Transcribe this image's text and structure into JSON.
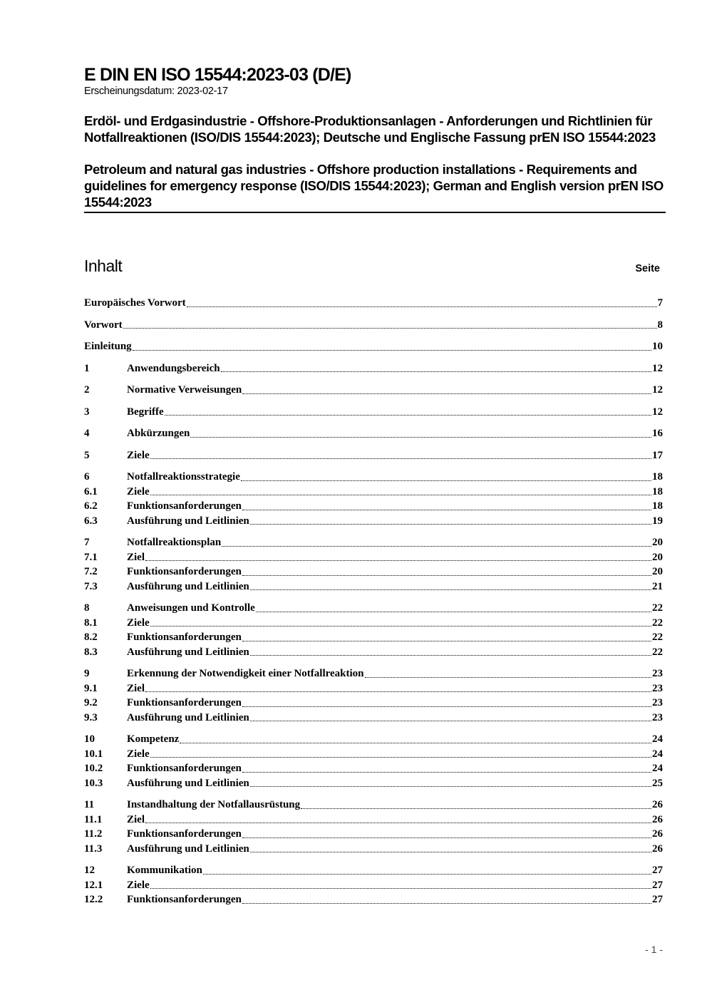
{
  "header": {
    "title": "E DIN EN ISO 15544:2023-03 (D/E)",
    "date": "Erscheinungsdatum: 2023-02-17",
    "title_de": "Erdöl- und Erdgasindustrie - Offshore-Produktionsanlagen - Anforderungen und Richtlinien für Notfallreaktionen (ISO/DIS 15544:2023); Deutsche und Englische Fassung prEN ISO 15544:2023",
    "title_en": "Petroleum and natural gas industries - Offshore production installations - Requirements and guidelines for emergency response (ISO/DIS 15544:2023); German and English version prEN ISO 15544:2023"
  },
  "toc": {
    "heading": "Inhalt",
    "page_label": "Seite",
    "entries": [
      {
        "num": "",
        "label": "Europäisches Vorwort",
        "page": "7",
        "major": true
      },
      {
        "num": "",
        "label": "Vorwort",
        "page": "8",
        "major": true
      },
      {
        "num": "",
        "label": "Einleitung",
        "page": "10",
        "major": true
      },
      {
        "num": "1",
        "label": "Anwendungsbereich",
        "page": "12",
        "major": true
      },
      {
        "num": "2",
        "label": "Normative Verweisungen",
        "page": "12",
        "major": true
      },
      {
        "num": "3",
        "label": "Begriffe",
        "page": "12",
        "major": true
      },
      {
        "num": "4",
        "label": "Abkürzungen",
        "page": "16",
        "major": true
      },
      {
        "num": "5",
        "label": "Ziele",
        "page": "17",
        "major": true
      },
      {
        "num": "6",
        "label": "Notfallreaktionsstrategie",
        "page": "18",
        "major": true
      },
      {
        "num": "6.1",
        "label": "Ziele",
        "page": "18",
        "major": false
      },
      {
        "num": "6.2",
        "label": "Funktionsanforderungen",
        "page": "18",
        "major": false
      },
      {
        "num": "6.3",
        "label": "Ausführung und Leitlinien",
        "page": "19",
        "major": false
      },
      {
        "num": "7",
        "label": "Notfallreaktionsplan",
        "page": "20",
        "major": true
      },
      {
        "num": "7.1",
        "label": "Ziel",
        "page": "20",
        "major": false
      },
      {
        "num": "7.2",
        "label": "Funktionsanforderungen",
        "page": "20",
        "major": false
      },
      {
        "num": "7.3",
        "label": "Ausführung und Leitlinien",
        "page": "21",
        "major": false
      },
      {
        "num": "8",
        "label": "Anweisungen und Kontrolle",
        "page": "22",
        "major": true
      },
      {
        "num": "8.1",
        "label": "Ziele",
        "page": "22",
        "major": false
      },
      {
        "num": "8.2",
        "label": "Funktionsanforderungen",
        "page": "22",
        "major": false
      },
      {
        "num": "8.3",
        "label": "Ausführung und Leitlinien",
        "page": "22",
        "major": false
      },
      {
        "num": "9",
        "label": "Erkennung der Notwendigkeit einer Notfallreaktion",
        "page": "23",
        "major": true
      },
      {
        "num": "9.1",
        "label": "Ziel",
        "page": "23",
        "major": false
      },
      {
        "num": "9.2",
        "label": "Funktionsanforderungen",
        "page": "23",
        "major": false
      },
      {
        "num": "9.3",
        "label": "Ausführung und Leitlinien",
        "page": "23",
        "major": false
      },
      {
        "num": "10",
        "label": "Kompetenz",
        "page": "24",
        "major": true
      },
      {
        "num": "10.1",
        "label": "Ziele",
        "page": "24",
        "major": false
      },
      {
        "num": "10.2",
        "label": "Funktionsanforderungen",
        "page": "24",
        "major": false
      },
      {
        "num": "10.3",
        "label": "Ausführung und Leitlinien",
        "page": "25",
        "major": false
      },
      {
        "num": "11",
        "label": "Instandhaltung der Notfallausrüstung",
        "page": "26",
        "major": true
      },
      {
        "num": "11.1",
        "label": "Ziel",
        "page": "26",
        "major": false
      },
      {
        "num": "11.2",
        "label": "Funktionsanforderungen",
        "page": "26",
        "major": false
      },
      {
        "num": "11.3",
        "label": "Ausführung und Leitlinien",
        "page": "26",
        "major": false
      },
      {
        "num": "12",
        "label": "Kommunikation",
        "page": "27",
        "major": true
      },
      {
        "num": "12.1",
        "label": "Ziele",
        "page": "27",
        "major": false
      },
      {
        "num": "12.2",
        "label": "Funktionsanforderungen",
        "page": "27",
        "major": false
      }
    ]
  },
  "footer": {
    "page_number": "- 1 -"
  }
}
